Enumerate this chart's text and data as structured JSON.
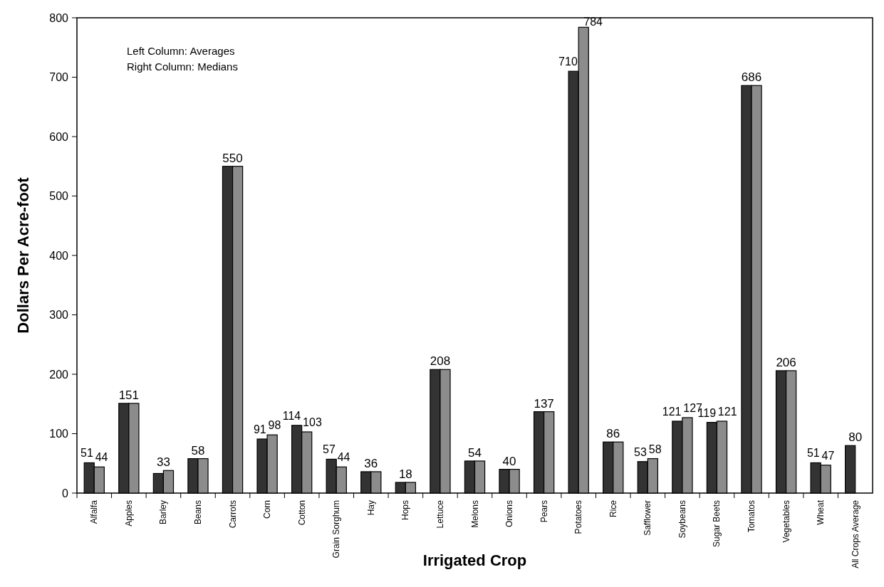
{
  "chart_data": {
    "type": "bar",
    "xlabel": "Irrigated Crop",
    "ylabel": "Dollars Per Acre-foot",
    "categories": [
      "Alfalfa",
      "Apples",
      "Barley",
      "Beans",
      "Carrots",
      "Corn",
      "Cotton",
      "Grain Sorghum",
      "Hay",
      "Hops",
      "Lettuce",
      "Melons",
      "Onions",
      "Pears",
      "Potatoes",
      "Rice",
      "Safflower",
      "Soybeans",
      "Sugar Beets",
      "Tomatos",
      "Vegetables",
      "Wheat",
      "All Crops Average"
    ],
    "series": [
      {
        "color": "#333333",
        "values": [
          51,
          151,
          33,
          58,
          550,
          91,
          114,
          57,
          36,
          18,
          208,
          54,
          40,
          137,
          710,
          86,
          53,
          121,
          119,
          686,
          206,
          51,
          80
        ],
        "value_labels": [
          "51",
          "151",
          "33",
          "58",
          "550",
          "91",
          "114",
          "57",
          "36",
          "18",
          "208",
          "54",
          "40",
          "137",
          "710",
          "86",
          "53",
          "121",
          "119",
          "686",
          "206",
          "51",
          "80"
        ]
      },
      {
        "color": "#8c8c8c",
        "values": [
          44,
          151,
          38,
          58,
          550,
          98,
          103,
          44,
          36,
          18,
          208,
          54,
          40,
          137,
          784,
          86,
          58,
          127,
          121,
          686,
          206,
          47,
          null
        ],
        "value_labels": [
          "44",
          null,
          null,
          null,
          null,
          "98",
          "103",
          "44",
          null,
          null,
          null,
          null,
          null,
          null,
          "784",
          null,
          "58",
          "127",
          "121",
          null,
          null,
          "47",
          null
        ]
      }
    ],
    "ylim": [
      0,
      800
    ],
    "yticks": [
      0,
      100,
      200,
      300,
      400,
      500,
      600,
      700,
      800
    ],
    "annotations": [
      "Left Column: Averages",
      "Right Column: Medians"
    ]
  }
}
